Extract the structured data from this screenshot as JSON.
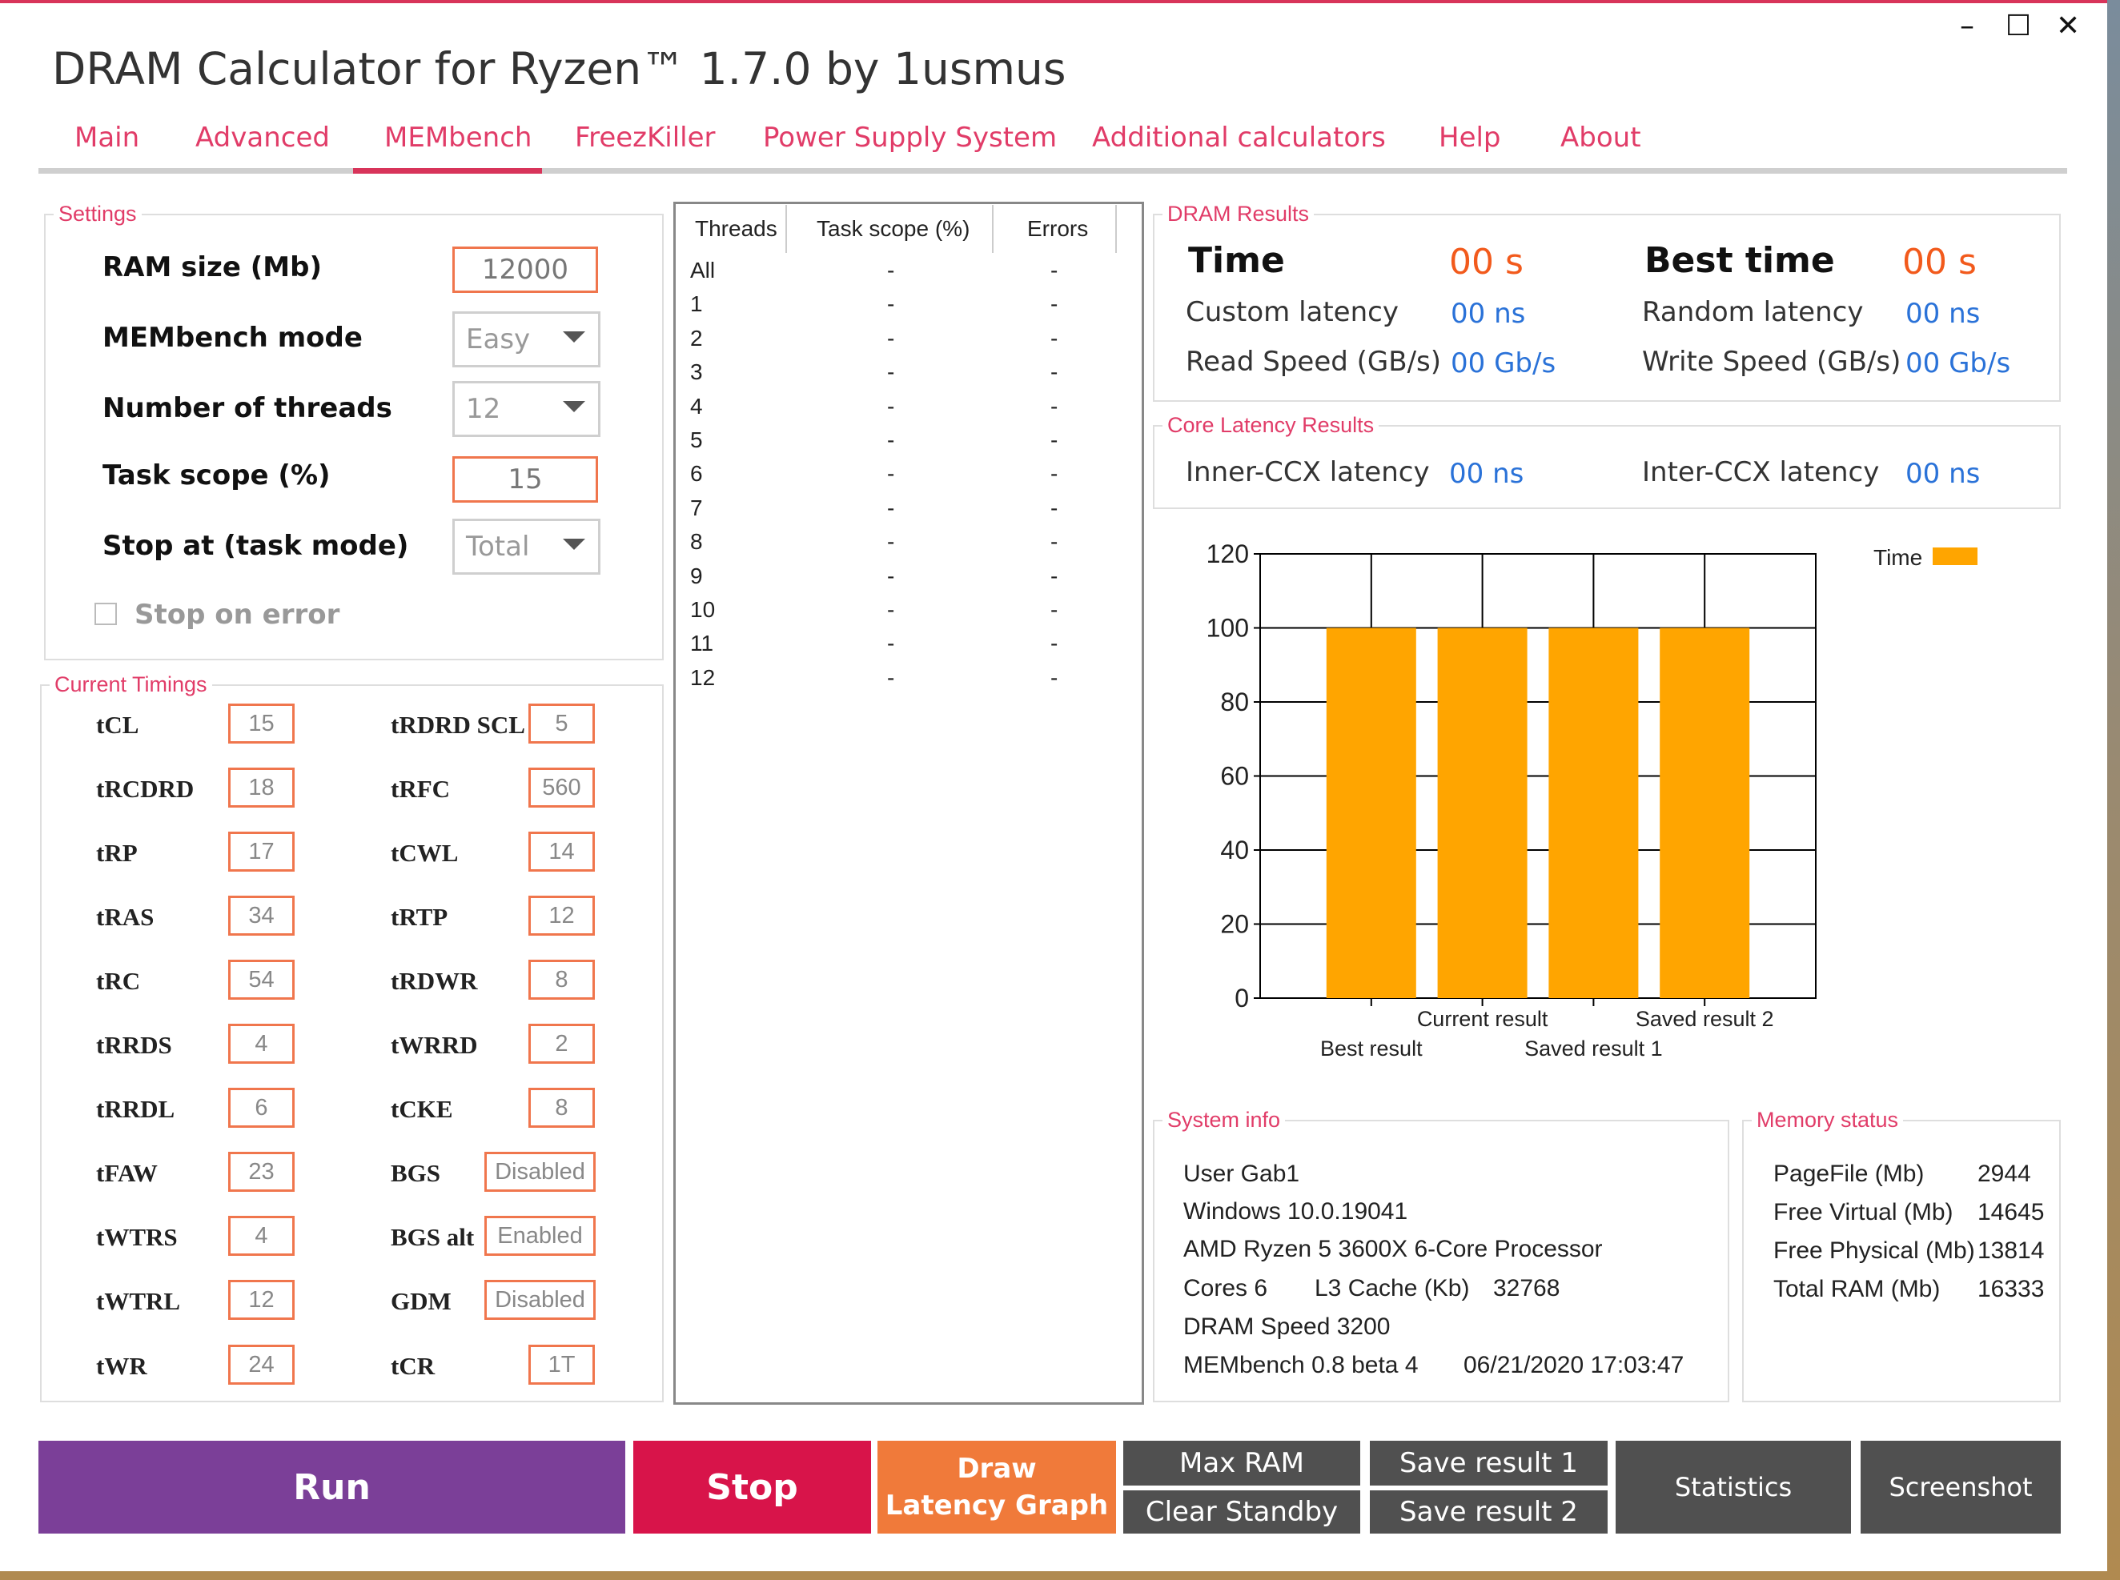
{
  "window": {
    "title": "DRAM Calculator for Ryzen™ 1.7.0 by 1usmus",
    "minimize": "–",
    "maximize": "☐",
    "close": "✕"
  },
  "tabs": [
    {
      "label": "Main"
    },
    {
      "label": "Advanced"
    },
    {
      "label": "MEMbench"
    },
    {
      "label": "FreezKiller"
    },
    {
      "label": "Power Supply System"
    },
    {
      "label": "Additional calculators"
    },
    {
      "label": "Help"
    },
    {
      "label": "About"
    }
  ],
  "settings": {
    "legend": "Settings",
    "ram_size_label": "RAM size (Mb)",
    "ram_size_value": "12000",
    "mode_label": "MEMbench mode",
    "mode_value": "Easy",
    "threads_label": "Number of threads",
    "threads_value": "12",
    "task_scope_label": "Task scope (%)",
    "task_scope_value": "15",
    "stop_at_label": "Stop at (task mode)",
    "stop_at_value": "Total",
    "stop_on_error_label": "Stop on error"
  },
  "timings": {
    "legend": "Current Timings",
    "left": [
      {
        "name": "tCL",
        "value": "15"
      },
      {
        "name": "tRCDRD",
        "value": "18"
      },
      {
        "name": "tRP",
        "value": "17"
      },
      {
        "name": "tRAS",
        "value": "34"
      },
      {
        "name": "tRC",
        "value": "54"
      },
      {
        "name": "tRRDS",
        "value": "4"
      },
      {
        "name": "tRRDL",
        "value": "6"
      },
      {
        "name": "tFAW",
        "value": "23"
      },
      {
        "name": "tWTRS",
        "value": "4"
      },
      {
        "name": "tWTRL",
        "value": "12"
      },
      {
        "name": "tWR",
        "value": "24"
      }
    ],
    "right": [
      {
        "name": "tRDRD SCL",
        "value": "5"
      },
      {
        "name": "tRFC",
        "value": "560"
      },
      {
        "name": "tCWL",
        "value": "14"
      },
      {
        "name": "tRTP",
        "value": "12"
      },
      {
        "name": "tRDWR",
        "value": "8"
      },
      {
        "name": "tWRRD",
        "value": "2"
      },
      {
        "name": "tCKE",
        "value": "8"
      },
      {
        "name": "BGS",
        "value": "Disabled"
      },
      {
        "name": "BGS alt",
        "value": "Enabled"
      },
      {
        "name": "GDM",
        "value": "Disabled"
      },
      {
        "name": "tCR",
        "value": "1T"
      }
    ]
  },
  "threads_table": {
    "headers": [
      "Threads",
      "Task scope (%)",
      "Errors"
    ],
    "rows": [
      [
        "All",
        "-",
        "-"
      ],
      [
        "1",
        "-",
        "-"
      ],
      [
        "2",
        "-",
        "-"
      ],
      [
        "3",
        "-",
        "-"
      ],
      [
        "4",
        "-",
        "-"
      ],
      [
        "5",
        "-",
        "-"
      ],
      [
        "6",
        "-",
        "-"
      ],
      [
        "7",
        "-",
        "-"
      ],
      [
        "8",
        "-",
        "-"
      ],
      [
        "9",
        "-",
        "-"
      ],
      [
        "10",
        "-",
        "-"
      ],
      [
        "11",
        "-",
        "-"
      ],
      [
        "12",
        "-",
        "-"
      ]
    ]
  },
  "dram_results": {
    "legend": "DRAM Results",
    "time_label": "Time",
    "time_value": "00 s",
    "best_time_label": "Best time",
    "best_time_value": "00 s",
    "custom_latency_label": "Custom latency",
    "custom_latency_value": "00 ns",
    "random_latency_label": "Random latency",
    "random_latency_value": "00 ns",
    "read_speed_label": "Read Speed (GB/s)",
    "read_speed_value": "00 Gb/s",
    "write_speed_label": "Write Speed (GB/s)",
    "write_speed_value": "00 Gb/s"
  },
  "core_latency": {
    "legend": "Core Latency Results",
    "inner_label": "Inner-CCX latency",
    "inner_value": "00 ns",
    "inter_label": "Inter-CCX latency",
    "inter_value": "00 ns"
  },
  "chart_data": {
    "type": "bar",
    "categories": [
      "Best result",
      "Current result",
      "Saved result 1",
      "Saved result 2"
    ],
    "series": [
      {
        "name": "Time",
        "values": [
          100,
          100,
          100,
          100
        ]
      }
    ],
    "ylim": [
      0,
      120
    ],
    "yticks": [
      "0",
      "20",
      "40",
      "60",
      "80",
      "100",
      "120"
    ],
    "grid": true,
    "legend_position": "top-right",
    "bar_color": "#ffa500"
  },
  "system_info": {
    "legend": "System info",
    "user": "User Gab1",
    "os": "Windows 10.0.19041",
    "cpu": "AMD Ryzen 5 3600X 6-Core Processor",
    "cores": "Cores 6",
    "l3_label": "L3 Cache (Kb)",
    "l3_value": "32768",
    "dram_speed": "DRAM Speed 3200",
    "membench": "MEMbench 0.8 beta 4",
    "datetime": "06/21/2020 17:03:47"
  },
  "memory_status": {
    "legend": "Memory status",
    "rows": [
      {
        "label": "PageFile (Mb)",
        "value": "2944"
      },
      {
        "label": "Free Virtual (Mb)",
        "value": "14645"
      },
      {
        "label": "Free Physical (Mb)",
        "value": "13814"
      },
      {
        "label": "Total RAM (Mb)",
        "value": "16333"
      }
    ]
  },
  "buttons": {
    "run": "Run",
    "stop": "Stop",
    "draw_line1": "Draw",
    "draw_line2": "Latency Graph",
    "max_ram": "Max RAM",
    "clear_standby": "Clear Standby",
    "save1": "Save result 1",
    "save2": "Save result 2",
    "statistics": "Statistics",
    "screenshot": "Screenshot"
  },
  "colors": {
    "accent": "#e13c68",
    "run": "#7b3f98",
    "stop": "#d8144a",
    "draw": "#f07a3a",
    "grey_button": "#505050",
    "value_blue": "#2a72d8",
    "value_orange": "#f25a1c"
  }
}
